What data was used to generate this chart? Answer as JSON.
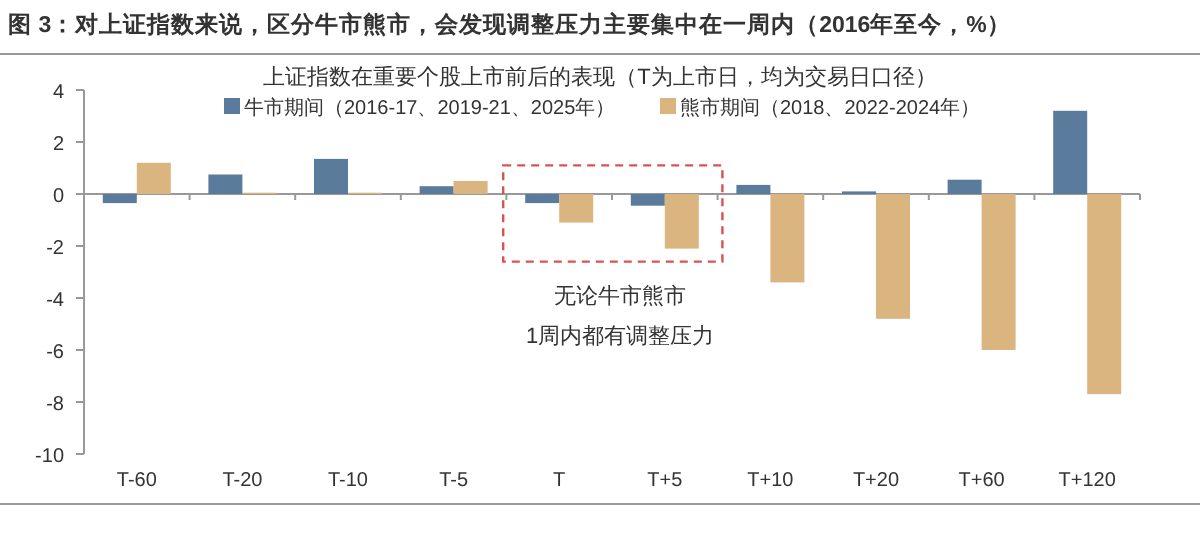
{
  "chart_data": {
    "type": "bar",
    "title": "图 3：对上证指数来说，区分牛市熊市，会发现调整压力主要集中在一周内（2016年至今，%）",
    "subtitle": "上证指数在重要个股上市前后的表现（T为上市日，均为交易日口径）",
    "categories": [
      "T-60",
      "T-20",
      "T-10",
      "T-5",
      "T",
      "T+5",
      "T+10",
      "T+20",
      "T+60",
      "T+120"
    ],
    "series": [
      {
        "name": "牛市期间（2016-17、2019-21、2025年）",
        "color": "#5b7b9c",
        "values": [
          -0.35,
          0.75,
          1.35,
          0.3,
          -0.35,
          -0.45,
          0.35,
          0.1,
          0.55,
          3.2
        ]
      },
      {
        "name": "熊市期间（2018、2022-2024年）",
        "color": "#dbb57f",
        "values": [
          1.2,
          0.05,
          0.05,
          0.5,
          -1.1,
          -2.1,
          -3.4,
          -4.8,
          -6.0,
          -7.7
        ]
      }
    ],
    "ylim": [
      -10,
      4
    ],
    "yticks": [
      -10,
      -8,
      -6,
      -4,
      -2,
      0,
      2,
      4
    ],
    "annotations": [
      "无论牛市熊市\n1周内都有调整压力"
    ],
    "legend": "top"
  }
}
